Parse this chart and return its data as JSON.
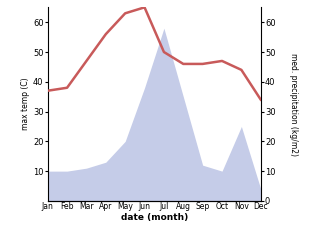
{
  "months": [
    "Jan",
    "Feb",
    "Mar",
    "Apr",
    "May",
    "Jun",
    "Jul",
    "Aug",
    "Sep",
    "Oct",
    "Nov",
    "Dec"
  ],
  "max_temp": [
    37,
    38,
    47,
    56,
    63,
    65,
    50,
    46,
    46,
    47,
    44,
    34
  ],
  "precipitation": [
    10,
    10,
    11,
    13,
    20,
    38,
    58,
    35,
    12,
    10,
    25,
    4
  ],
  "temp_color": "#c85a5a",
  "precip_fill_color": "#c5cce8",
  "ylabel_left": "max temp (C)",
  "ylabel_right": "med. precipitation (kg/m2)",
  "xlabel": "date (month)",
  "ylim_left": [
    0,
    65
  ],
  "ylim_right": [
    0,
    65
  ],
  "yticks_left": [
    10,
    20,
    30,
    40,
    50,
    60
  ],
  "yticks_right": [
    0,
    10,
    20,
    30,
    40,
    50,
    60
  ],
  "background_color": "#ffffff",
  "line_width": 1.8
}
